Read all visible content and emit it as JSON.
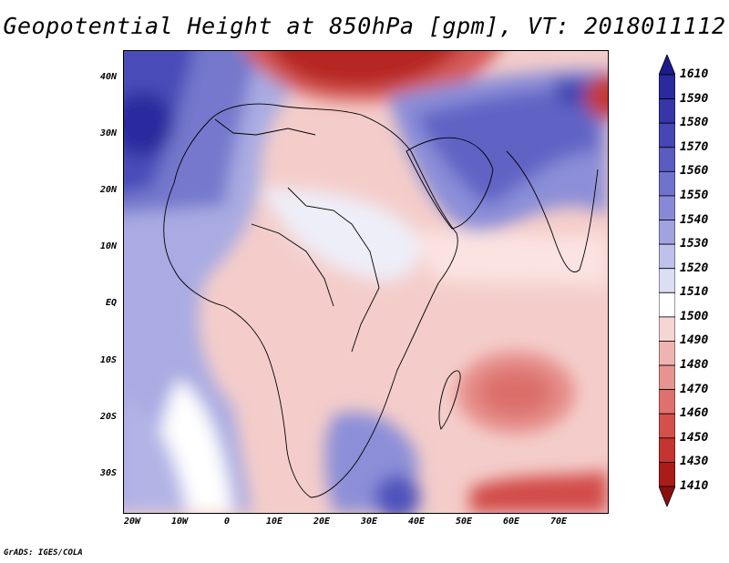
{
  "title": "Geopotential Height at 850hPa [gpm], VT: 2018011112",
  "credit": "GrADS: IGES/COLA",
  "lat_labels": [
    "40N",
    "30N",
    "20N",
    "10N",
    "EQ",
    "10S",
    "20S",
    "30S"
  ],
  "lon_labels": [
    "20W",
    "10W",
    "0",
    "10E",
    "20E",
    "30E",
    "40E",
    "50E",
    "60E",
    "70E"
  ],
  "colorbar": {
    "levels": [
      "1610",
      "1590",
      "1580",
      "1570",
      "1560",
      "1550",
      "1540",
      "1530",
      "1520",
      "1510",
      "1500",
      "1490",
      "1480",
      "1470",
      "1460",
      "1450",
      "1430",
      "1410"
    ],
    "colors": [
      "#1c1a8c",
      "#2a2a9e",
      "#3636a8",
      "#4646b4",
      "#5a5cc0",
      "#6f72cc",
      "#8789d6",
      "#a1a3e0",
      "#bfc1ea",
      "#dcdef4",
      "#ffffff",
      "#f6d6d4",
      "#efb4b1",
      "#e79390",
      "#de716e",
      "#d4504d",
      "#c43430",
      "#a81c1a",
      "#8a1010"
    ]
  }
}
